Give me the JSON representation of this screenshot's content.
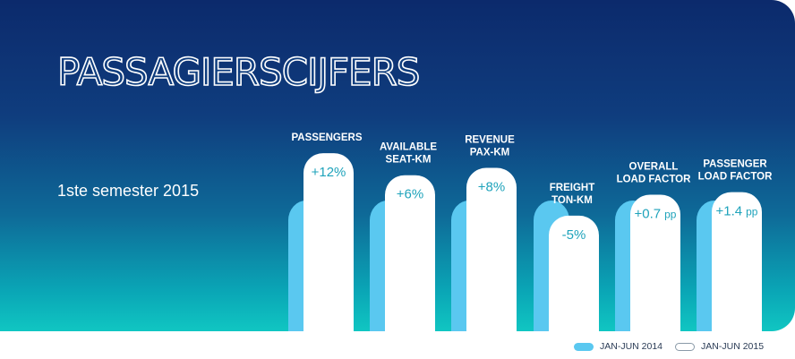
{
  "title": "PASSAGIERSCIJFERS",
  "subtitle": "1ste semester 2015",
  "colors": {
    "series_2014": "#5ac8f0",
    "series_2015": "#ffffff",
    "value_text": "#1fa3bb",
    "label_text": "#ffffff"
  },
  "legend": {
    "items": [
      {
        "label": "JAN-JUN 2014",
        "color": "#5ac8f0"
      },
      {
        "label": "JAN-JUN 2015",
        "color": "#ffffff"
      }
    ]
  },
  "chart_data": {
    "type": "bar",
    "categories": [
      {
        "lines": [
          "PASSENGERS"
        ],
        "change": "+12%"
      },
      {
        "lines": [
          "AVAILABLE",
          "SEAT-KM"
        ],
        "change": "+6%"
      },
      {
        "lines": [
          "REVENUE",
          "PAX-KM"
        ],
        "change": "+8%"
      },
      {
        "lines": [
          "FREIGHT",
          "TON-KM"
        ],
        "change": "-5%"
      },
      {
        "lines": [
          "OVERALL",
          "LOAD FACTOR"
        ],
        "change": "+0.7",
        "unit": "pp"
      },
      {
        "lines": [
          "PASSENGER",
          "LOAD FACTOR"
        ],
        "change": "+1.4",
        "unit": "pp"
      }
    ],
    "series": [
      {
        "name": "JAN-JUN 2014",
        "values": [
          100,
          100,
          100,
          100,
          100,
          100
        ]
      },
      {
        "name": "JAN-JUN 2015",
        "values": [
          112,
          106,
          108,
          95,
          100.7,
          101.4
        ]
      }
    ],
    "legend_position": "bottom-right",
    "grid": false
  }
}
